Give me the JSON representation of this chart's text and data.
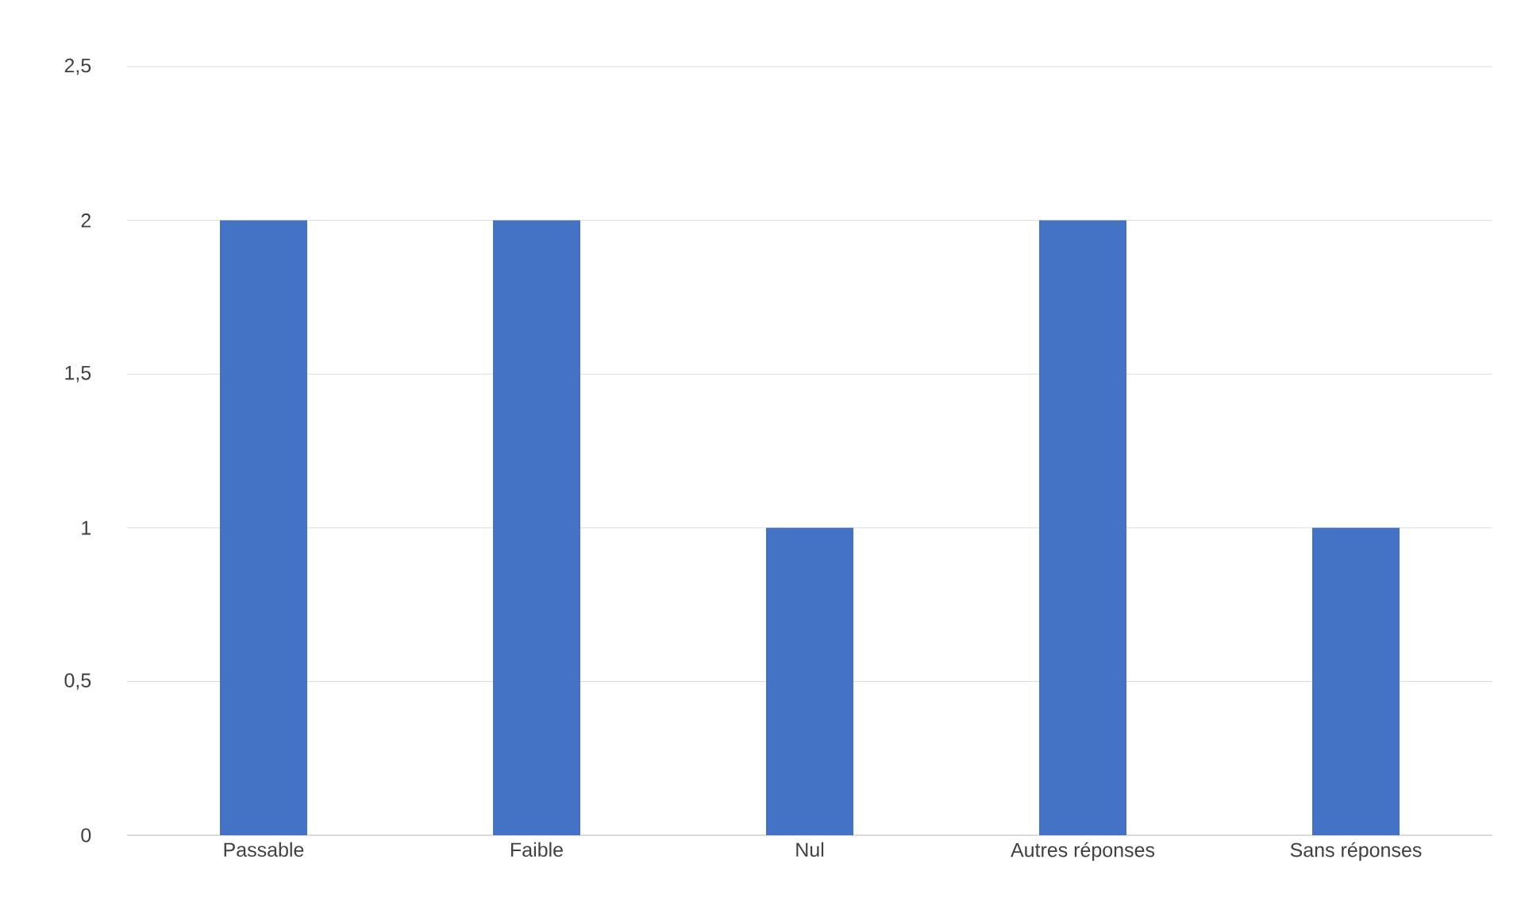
{
  "chart_data": {
    "type": "bar",
    "categories": [
      "Passable",
      "Faible",
      "Nul",
      "Autres réponses",
      "Sans réponses"
    ],
    "values": [
      2,
      2,
      1,
      2,
      1
    ],
    "color": "#4472c4",
    "ylim": [
      0,
      2.5
    ],
    "yticks": [
      0,
      {
        "value": 0.5,
        "label": "0,5"
      },
      1,
      {
        "value": 1.5,
        "label": "1,5"
      },
      2,
      {
        "value": 2.5,
        "label": "2,5"
      }
    ],
    "grid": "y"
  }
}
